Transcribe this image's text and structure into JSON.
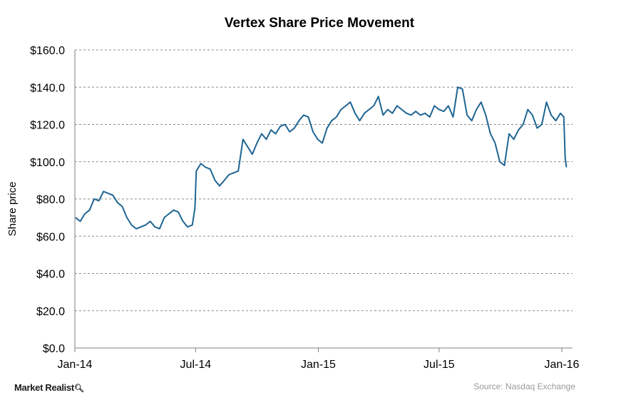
{
  "chart_data": {
    "type": "line",
    "title": "Vertex Share Price Movement",
    "xlabel": "",
    "ylabel": "Share price",
    "ylim": [
      0,
      160
    ],
    "yticks": [
      "$0.0",
      "$20.0",
      "$40.0",
      "$60.0",
      "$80.0",
      "$100.0",
      "$120.0",
      "$140.0",
      "$160.0"
    ],
    "xticks": [
      "Jan-14",
      "Jul-14",
      "Jan-15",
      "Jul-15",
      "Jan-16"
    ],
    "grid": "horizontal dashed",
    "line_color": "#1f6592",
    "series": [
      {
        "x": [
          "2014-01-02",
          "2014-01-09",
          "2014-01-16",
          "2014-01-23",
          "2014-01-30",
          "2014-02-06",
          "2014-02-13",
          "2014-02-20",
          "2014-02-27",
          "2014-03-06",
          "2014-03-13",
          "2014-03-20",
          "2014-03-27",
          "2014-04-03",
          "2014-04-10",
          "2014-04-17",
          "2014-04-24",
          "2014-05-01",
          "2014-05-08",
          "2014-05-15",
          "2014-05-22",
          "2014-05-29",
          "2014-06-05",
          "2014-06-12",
          "2014-06-19",
          "2014-06-26",
          "2014-06-30",
          "2014-07-02",
          "2014-07-09",
          "2014-07-16",
          "2014-07-23",
          "2014-07-30",
          "2014-08-06",
          "2014-08-13",
          "2014-08-20",
          "2014-08-27",
          "2014-09-03",
          "2014-09-10",
          "2014-09-17",
          "2014-09-24",
          "2014-10-01",
          "2014-10-08",
          "2014-10-15",
          "2014-10-22",
          "2014-10-29",
          "2014-11-05",
          "2014-11-12",
          "2014-11-19",
          "2014-11-26",
          "2014-12-03",
          "2014-12-10",
          "2014-12-17",
          "2014-12-24",
          "2014-12-31",
          "2015-01-07",
          "2015-01-14",
          "2015-01-21",
          "2015-01-28",
          "2015-02-04",
          "2015-02-11",
          "2015-02-18",
          "2015-02-25",
          "2015-03-04",
          "2015-03-11",
          "2015-03-18",
          "2015-03-25",
          "2015-04-01",
          "2015-04-08",
          "2015-04-15",
          "2015-04-22",
          "2015-04-29",
          "2015-05-06",
          "2015-05-13",
          "2015-05-20",
          "2015-05-27",
          "2015-06-03",
          "2015-06-10",
          "2015-06-17",
          "2015-06-24",
          "2015-07-01",
          "2015-07-08",
          "2015-07-15",
          "2015-07-22",
          "2015-07-29",
          "2015-08-05",
          "2015-08-12",
          "2015-08-19",
          "2015-08-26",
          "2015-09-02",
          "2015-09-09",
          "2015-09-16",
          "2015-09-23",
          "2015-09-30",
          "2015-10-07",
          "2015-10-14",
          "2015-10-21",
          "2015-10-28",
          "2015-11-04",
          "2015-11-11",
          "2015-11-18",
          "2015-11-25",
          "2015-12-02",
          "2015-12-09",
          "2015-12-16",
          "2015-12-23",
          "2015-12-30",
          "2016-01-04",
          "2016-01-06",
          "2016-01-08"
        ],
        "y": [
          70,
          68,
          72,
          74,
          80,
          79,
          84,
          83,
          82,
          78,
          76,
          70,
          66,
          64,
          65,
          66,
          68,
          65,
          64,
          70,
          72,
          74,
          73,
          68,
          65,
          66,
          75,
          95,
          99,
          97,
          96,
          90,
          87,
          90,
          93,
          94,
          95,
          112,
          108,
          104,
          110,
          115,
          112,
          117,
          115,
          119,
          120,
          116,
          118,
          122,
          125,
          124,
          116,
          112,
          110,
          118,
          122,
          124,
          128,
          130,
          132,
          126,
          122,
          126,
          128,
          130,
          135,
          125,
          128,
          126,
          130,
          128,
          126,
          125,
          127,
          125,
          126,
          124,
          130,
          128,
          127,
          130,
          124,
          140,
          139,
          125,
          122,
          128,
          132,
          125,
          115,
          110,
          100,
          98,
          115,
          112,
          117,
          120,
          128,
          125,
          118,
          120,
          132,
          125,
          122,
          126,
          124,
          102,
          97
        ]
      }
    ]
  },
  "brand": "Market Realist",
  "source": "Source:  Nasdaq Exchange"
}
